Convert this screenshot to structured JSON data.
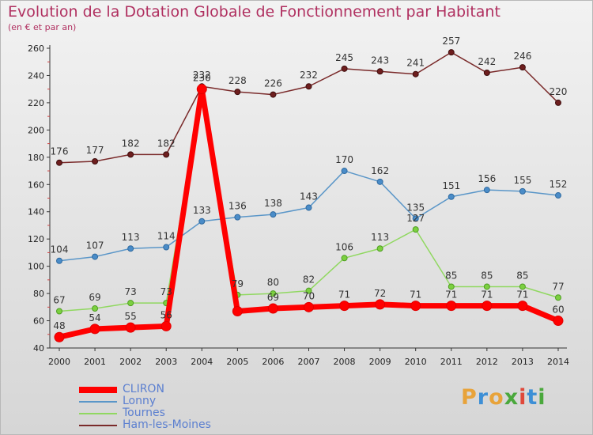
{
  "header": {
    "title": "Evolution de la Dotation Globale de Fonctionnement par Habitant",
    "subtitle": "(en € et par an)"
  },
  "logo": {
    "text": "Proxiti",
    "letters": [
      "P",
      "r",
      "o",
      "x",
      "i",
      "t",
      "i"
    ],
    "colors": [
      "#e8a33a",
      "#3d8fd6",
      "#e8a33a",
      "#4aa83c",
      "#e0483a",
      "#3d8fd6",
      "#4aa83c"
    ]
  },
  "chart_data": {
    "type": "line",
    "title": "Evolution de la Dotation Globale de Fonctionnement par Habitant",
    "subtitle": "(en € et par an)",
    "xlabel": "",
    "ylabel": "",
    "x": [
      2000,
      2001,
      2002,
      2003,
      2004,
      2005,
      2006,
      2007,
      2008,
      2009,
      2010,
      2011,
      2012,
      2013,
      2014
    ],
    "ylim": [
      40,
      260
    ],
    "yticks": [
      40,
      60,
      80,
      100,
      120,
      140,
      160,
      180,
      200,
      220,
      240,
      260
    ],
    "grid": false,
    "legend_position": "bottom-left",
    "series": [
      {
        "name": "CLIRON",
        "color": "#ff0000",
        "values": [
          48,
          54,
          55,
          56,
          230,
          67,
          69,
          70,
          71,
          72,
          71,
          71,
          71,
          71,
          60
        ],
        "labels": [
          "48",
          "54",
          "55",
          "56",
          "",
          "",
          "69",
          "70",
          "71",
          "72",
          "71",
          "71",
          "71",
          "71",
          "60"
        ]
      },
      {
        "name": "Lonny",
        "color": "#5a96c8",
        "values": [
          104,
          107,
          113,
          114,
          133,
          136,
          138,
          143,
          170,
          162,
          135,
          151,
          156,
          155,
          152
        ],
        "labels": [
          "104",
          "107",
          "113",
          "114",
          "133",
          "136",
          "138",
          "143",
          "170",
          "162",
          "135",
          "151",
          "156",
          "155",
          "152"
        ]
      },
      {
        "name": "Tournes",
        "color": "#90d860",
        "values": [
          67,
          69,
          73,
          73,
          230,
          79,
          80,
          82,
          106,
          113,
          127,
          85,
          85,
          85,
          77
        ],
        "labels": [
          "67",
          "69",
          "73",
          "73",
          "230",
          "79",
          "80",
          "82",
          "106",
          "113",
          "127",
          "85",
          "85",
          "85",
          "77"
        ]
      },
      {
        "name": "Ham-les-Moines",
        "color": "#7a2a2a",
        "values": [
          176,
          177,
          182,
          182,
          232,
          228,
          226,
          232,
          245,
          243,
          241,
          257,
          242,
          246,
          220
        ],
        "labels": [
          "176",
          "177",
          "182",
          "182",
          "232",
          "228",
          "226",
          "232",
          "245",
          "243",
          "241",
          "257",
          "242",
          "246",
          "220"
        ]
      }
    ]
  }
}
